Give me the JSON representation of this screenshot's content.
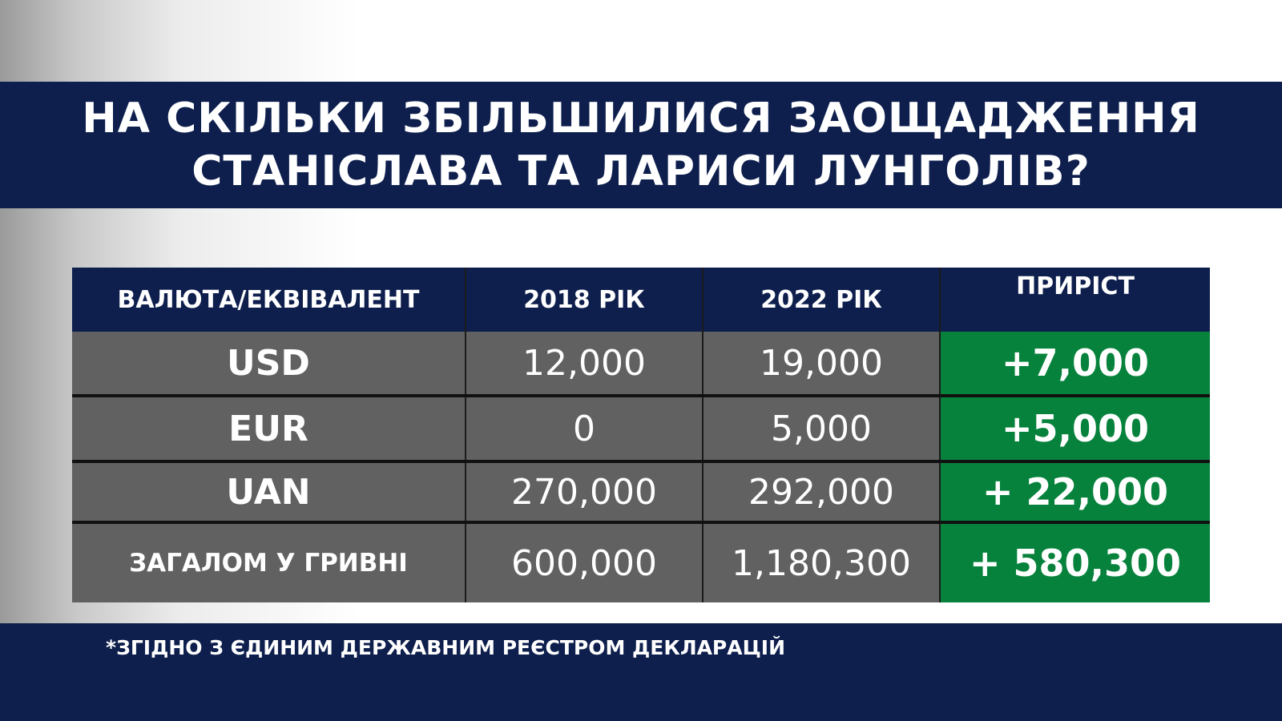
{
  "title": {
    "line1": "НА СКІЛЬКИ ЗБІЛЬШИЛИСЯ ЗАОЩАДЖЕННЯ",
    "line2": "СТАНІСЛАВА ТА ЛАРИСИ ЛУНГОЛІВ?"
  },
  "table": {
    "headers": [
      "ВАЛЮТА/ЕКВІВАЛЕНТ",
      "2018 РІК",
      "2022 РІК",
      "ПРИРІСТ"
    ],
    "rows": [
      {
        "currency": "USD",
        "y2018": "12,000",
        "y2022": "19,000",
        "gain": "+7,000"
      },
      {
        "currency": "EUR",
        "y2018": "0",
        "y2022": "5,000",
        "gain": "+5,000"
      },
      {
        "currency": "UAN",
        "y2018": "270,000",
        "y2022": "292,000",
        "gain": "+ 22,000"
      },
      {
        "currency": "ЗАГАЛОМ У ГРИВНІ",
        "y2018": "600,000",
        "y2022": "1,180,300",
        "gain": "+ 580,300"
      }
    ]
  },
  "footnote": "*ЗГІДНО З ЄДИНИМ ДЕРЖАВНИМ РЕЄСТРОМ ДЕКЛАРАЦІЙ",
  "colors": {
    "navy": "#0e1f4d",
    "row_gray": "#616161",
    "gain_green": "#06823c"
  }
}
